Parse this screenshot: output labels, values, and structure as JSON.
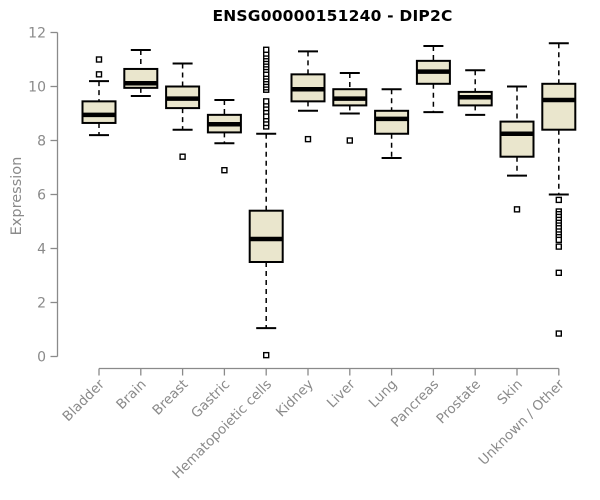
{
  "chart_data": {
    "type": "box",
    "title": "ENSG00000151240 - DIP2C",
    "xlabel": "",
    "ylabel": "Expression",
    "ylim": [
      0,
      12
    ],
    "yticks": [
      0,
      2,
      4,
      6,
      8,
      10,
      12
    ],
    "grid": false,
    "legend": "none",
    "categories": [
      "Bladder",
      "Brain",
      "Breast",
      "Gastric",
      "Hematopoietic cells",
      "Kidney",
      "Liver",
      "Lung",
      "Pancreas",
      "Prostate",
      "Skin",
      "Unknown / Other"
    ],
    "series": [
      {
        "name": "Bladder",
        "low": 8.2,
        "q1": 8.65,
        "median": 8.95,
        "q3": 9.45,
        "high": 10.2,
        "outliers": [
          10.45,
          11.0
        ]
      },
      {
        "name": "Brain",
        "low": 9.65,
        "q1": 9.95,
        "median": 10.12,
        "q3": 10.65,
        "high": 11.35,
        "outliers": []
      },
      {
        "name": "Breast",
        "low": 8.4,
        "q1": 9.2,
        "median": 9.55,
        "q3": 10.0,
        "high": 10.85,
        "outliers": [
          7.4
        ]
      },
      {
        "name": "Gastric",
        "low": 7.9,
        "q1": 8.3,
        "median": 8.6,
        "q3": 8.95,
        "high": 9.5,
        "outliers": [
          6.9
        ]
      },
      {
        "name": "Hematopoietic cells",
        "low": 1.05,
        "q1": 3.5,
        "median": 4.35,
        "q3": 5.4,
        "high": 8.25,
        "outliers": [
          0.05,
          8.52,
          8.65,
          8.78,
          8.9,
          9.07,
          9.2,
          9.33,
          9.45,
          9.88,
          9.97,
          10.07,
          10.17,
          10.27,
          10.37,
          10.47,
          10.62,
          10.72,
          10.82,
          10.92,
          11.02,
          11.12,
          11.22,
          11.36
        ]
      },
      {
        "name": "Kidney",
        "low": 9.1,
        "q1": 9.45,
        "median": 9.9,
        "q3": 10.45,
        "high": 11.3,
        "outliers": [
          8.05
        ]
      },
      {
        "name": "Liver",
        "low": 9.0,
        "q1": 9.3,
        "median": 9.55,
        "q3": 9.9,
        "high": 10.5,
        "outliers": [
          8.0
        ]
      },
      {
        "name": "Lung",
        "low": 7.35,
        "q1": 8.25,
        "median": 8.8,
        "q3": 9.1,
        "high": 9.9,
        "outliers": []
      },
      {
        "name": "Pancreas",
        "low": 9.05,
        "q1": 10.1,
        "median": 10.55,
        "q3": 10.95,
        "high": 11.5,
        "outliers": []
      },
      {
        "name": "Prostate",
        "low": 8.95,
        "q1": 9.3,
        "median": 9.6,
        "q3": 9.8,
        "high": 10.6,
        "outliers": []
      },
      {
        "name": "Skin",
        "low": 6.7,
        "q1": 7.4,
        "median": 8.25,
        "q3": 8.7,
        "high": 10.0,
        "outliers": [
          5.45
        ]
      },
      {
        "name": "Unknown / Other",
        "low": 6.0,
        "q1": 8.4,
        "median": 9.5,
        "q3": 10.1,
        "high": 11.6,
        "outliers": [
          5.8,
          5.37,
          5.27,
          5.17,
          5.06,
          4.95,
          4.85,
          4.75,
          4.63,
          4.52,
          4.42,
          4.32,
          4.07,
          3.1,
          0.85
        ]
      }
    ],
    "colors": {
      "box_fill": "#EAE6CD",
      "box_stroke": "#000000",
      "axis": "#8a8a8a",
      "text": "#8a8a8a",
      "title": "#000000",
      "background": "#ffffff"
    }
  }
}
